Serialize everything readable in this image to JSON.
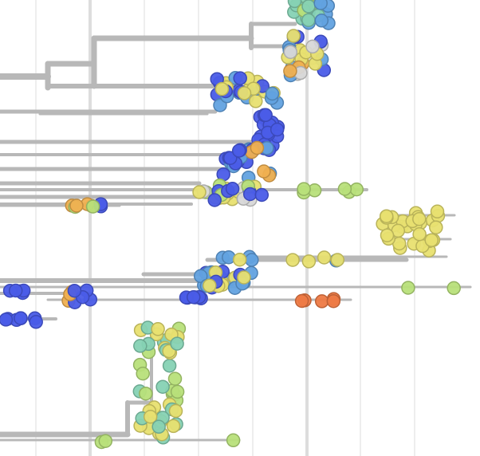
{
  "view": "phylogenetic-tree",
  "colors": {
    "branch": "#b8b8b8",
    "grid": "#eeeeee",
    "grid_major": "#dddddd",
    "tip_blue": "#4a5ce8",
    "tip_lightblue": "#62a2e0",
    "tip_yellow": "#e8e070",
    "tip_lightgreen": "#b8e07a",
    "tip_teal": "#86d2b4",
    "tip_orange": "#f0b050",
    "tip_red": "#ee7a44",
    "tip_gray": "#d8d8d8"
  }
}
